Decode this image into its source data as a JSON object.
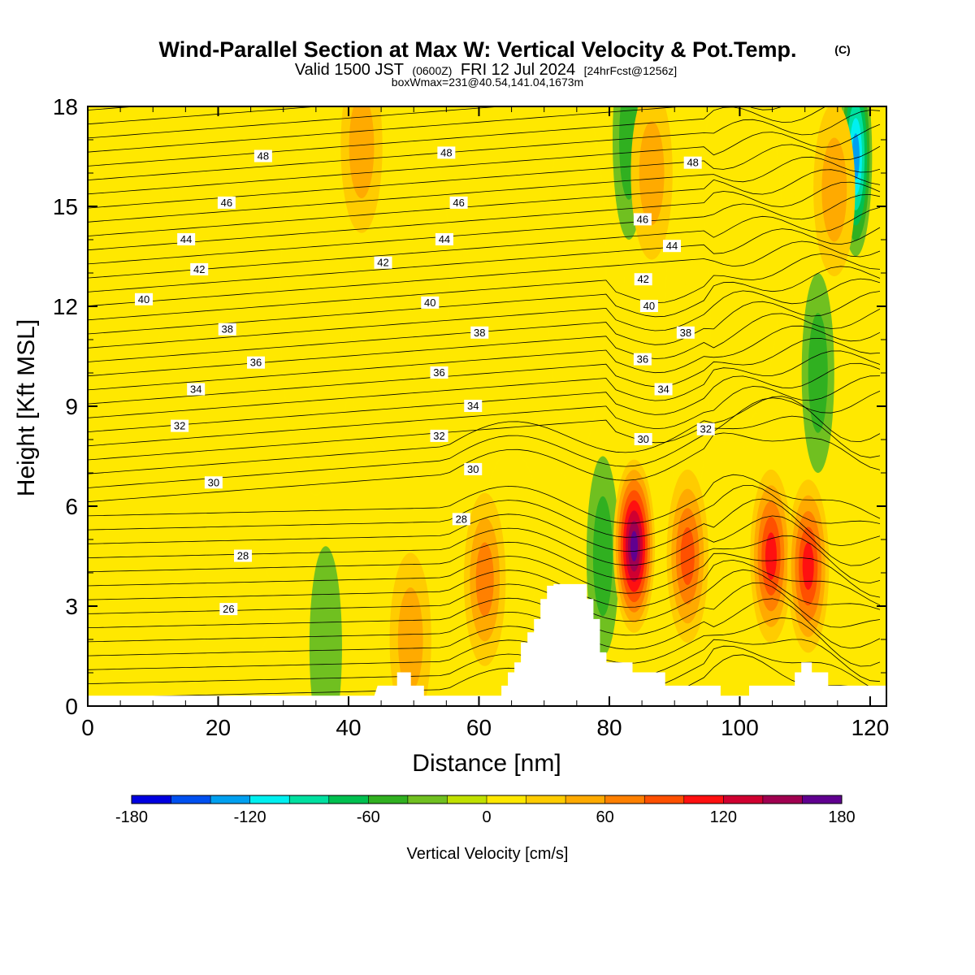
{
  "title": {
    "main": "Wind-Parallel Section at Max W: Vertical Velocity & Pot.Temp.",
    "copyright": "(C)",
    "valid_prefix": "Valid 1500 JST",
    "utc": "(0600Z)",
    "date": "FRI 12 Jul 2024",
    "forecast": "[24hrFcst@1256z]",
    "box_info": "boxWmax=231@40.54,141.04,1673m"
  },
  "chart_data": {
    "type": "heatmap",
    "xlabel": "Distance [nm]",
    "ylabel": "Height [Kft MSL]",
    "xlim": [
      0,
      122.5
    ],
    "ylim": [
      0,
      18
    ],
    "x_ticks": [
      "0",
      "20",
      "40",
      "60",
      "80",
      "100",
      "120"
    ],
    "x_tick_values": [
      0,
      20,
      40,
      60,
      80,
      100,
      120
    ],
    "y_ticks": [
      "0",
      "3",
      "6",
      "9",
      "12",
      "15",
      "18"
    ],
    "y_tick_values": [
      0,
      3,
      6,
      9,
      12,
      15,
      18
    ],
    "field": "Vertical Velocity",
    "contour_field": "Potential Temperature",
    "colorbar": {
      "label": "Vertical Velocity [cm/s]",
      "tick_labels": [
        "-180",
        "-120",
        "-60",
        "0",
        "60",
        "120",
        "180"
      ],
      "tick_values": [
        -180,
        -120,
        -60,
        0,
        60,
        120,
        180
      ],
      "levels": [
        -180,
        -160,
        -140,
        -120,
        -100,
        -80,
        -60,
        -40,
        -20,
        0,
        20,
        40,
        60,
        80,
        100,
        120,
        140,
        160,
        180
      ],
      "colors": [
        "#0000e0",
        "#0050f0",
        "#00a0f0",
        "#00f0f0",
        "#00e0a0",
        "#00c050",
        "#30b020",
        "#70c020",
        "#c0e000",
        "#ffe800",
        "#ffcc00",
        "#ffaa00",
        "#ff8000",
        "#ff5000",
        "#ff1010",
        "#d00030",
        "#a00050",
        "#600090"
      ]
    },
    "updraft_cores": [
      {
        "x": 60.9,
        "height": 3.8,
        "value": 70
      },
      {
        "x": 83.8,
        "height": 4.8,
        "value": 175
      },
      {
        "x": 92.0,
        "height": 4.5,
        "value": 90
      },
      {
        "x": 104.8,
        "height": 4.5,
        "value": 110
      },
      {
        "x": 110.5,
        "height": 4.2,
        "value": 100
      },
      {
        "x": 49.5,
        "height": 2.0,
        "value": 40
      },
      {
        "x": 42.0,
        "height": 16.8,
        "value": 40
      },
      {
        "x": 86.5,
        "height": 16.0,
        "value": 50
      },
      {
        "x": 114.5,
        "height": 15.5,
        "value": 55
      }
    ],
    "downdraft_cores": [
      {
        "x": 117.8,
        "height": 16.5,
        "value": -130
      },
      {
        "x": 112.0,
        "height": 10.0,
        "value": -55
      },
      {
        "x": 79.0,
        "height": 4.5,
        "value": -45
      },
      {
        "x": 83.0,
        "height": 17.0,
        "value": -45
      },
      {
        "x": 36.5,
        "height": 1.8,
        "value": -35
      }
    ],
    "terrain": {
      "x": [
        0,
        44,
        44.5,
        47.5,
        47.5,
        49.5,
        49.5,
        51.5,
        51.5,
        63.5,
        63.5,
        64.5,
        64.5,
        65.5,
        65.5,
        66.5,
        66.5,
        67.5,
        67.5,
        68.5,
        68.5,
        69.5,
        69.5,
        70.5,
        70.5,
        71.5,
        71.5,
        72.5,
        72.5,
        76.5,
        76.5,
        77.5,
        77.5,
        78.5,
        78.5,
        79.5,
        79.5,
        80.5,
        80.5,
        83.5,
        83.5,
        85.5,
        85.5,
        88.5,
        88.5,
        97.0,
        97.0,
        100.5,
        100.5,
        101.5,
        101.5,
        108.5,
        108.5,
        109.5,
        109.5,
        111.0,
        111.0,
        113.5,
        113.5,
        122.5
      ],
      "height": [
        0.3,
        0.3,
        0.6,
        0.6,
        1.0,
        1.0,
        0.6,
        0.6,
        0.3,
        0.3,
        0.6,
        0.6,
        1.0,
        1.0,
        1.3,
        1.3,
        1.9,
        1.9,
        2.2,
        2.2,
        2.6,
        2.6,
        3.2,
        3.2,
        3.6,
        3.6,
        3.65,
        3.65,
        3.65,
        3.65,
        3.2,
        3.2,
        2.6,
        2.6,
        1.6,
        1.6,
        1.3,
        1.3,
        1.3,
        1.3,
        1.0,
        1.0,
        1.0,
        1.0,
        0.6,
        0.6,
        0.3,
        0.3,
        0.3,
        0.3,
        0.6,
        0.6,
        1.0,
        1.0,
        1.3,
        1.3,
        1.0,
        1.0,
        0.6,
        0.6
      ]
    },
    "contour_levels_labeled": [
      "26",
      "28",
      "30",
      "32",
      "34",
      "36",
      "38",
      "40",
      "42",
      "44",
      "46",
      "48"
    ],
    "contour_labels": [
      {
        "text": "48",
        "x": 26.9,
        "height": 16.5
      },
      {
        "text": "46",
        "x": 21.3,
        "height": 15.1
      },
      {
        "text": "44",
        "x": 15.1,
        "height": 14.0
      },
      {
        "text": "42",
        "x": 17.1,
        "height": 13.1
      },
      {
        "text": "40",
        "x": 8.6,
        "height": 12.2
      },
      {
        "text": "38",
        "x": 21.4,
        "height": 11.3
      },
      {
        "text": "36",
        "x": 25.8,
        "height": 10.3
      },
      {
        "text": "34",
        "x": 16.6,
        "height": 9.5
      },
      {
        "text": "32",
        "x": 14.1,
        "height": 8.4
      },
      {
        "text": "30",
        "x": 19.3,
        "height": 6.7
      },
      {
        "text": "28",
        "x": 23.8,
        "height": 4.5
      },
      {
        "text": "26",
        "x": 21.6,
        "height": 2.9
      },
      {
        "text": "48",
        "x": 55.0,
        "height": 16.6
      },
      {
        "text": "46",
        "x": 56.9,
        "height": 15.1
      },
      {
        "text": "44",
        "x": 54.7,
        "height": 14.0
      },
      {
        "text": "42",
        "x": 45.3,
        "height": 13.3
      },
      {
        "text": "40",
        "x": 52.5,
        "height": 12.1
      },
      {
        "text": "38",
        "x": 60.1,
        "height": 11.2
      },
      {
        "text": "36",
        "x": 53.9,
        "height": 10.0
      },
      {
        "text": "34",
        "x": 59.1,
        "height": 9.0
      },
      {
        "text": "32",
        "x": 53.9,
        "height": 8.1
      },
      {
        "text": "30",
        "x": 59.1,
        "height": 7.1
      },
      {
        "text": "28",
        "x": 57.3,
        "height": 5.6
      },
      {
        "text": "48",
        "x": 92.8,
        "height": 16.3
      },
      {
        "text": "46",
        "x": 85.1,
        "height": 14.6
      },
      {
        "text": "44",
        "x": 89.6,
        "height": 13.8
      },
      {
        "text": "42",
        "x": 85.2,
        "height": 12.8
      },
      {
        "text": "40",
        "x": 86.1,
        "height": 12.0
      },
      {
        "text": "38",
        "x": 91.7,
        "height": 11.2
      },
      {
        "text": "36",
        "x": 85.1,
        "height": 10.4
      },
      {
        "text": "34",
        "x": 88.3,
        "height": 9.5
      },
      {
        "text": "32",
        "x": 94.8,
        "height": 8.3
      },
      {
        "text": "30",
        "x": 85.2,
        "height": 8.0
      }
    ]
  }
}
